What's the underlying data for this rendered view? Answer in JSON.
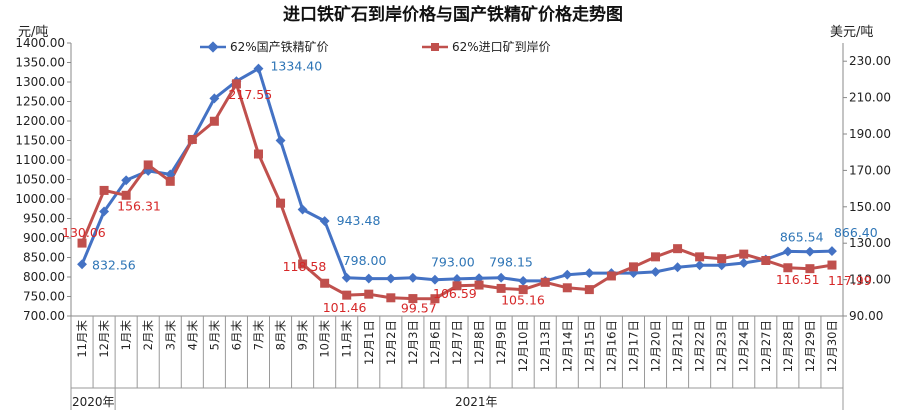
{
  "chart_data": {
    "type": "line",
    "title": "进口铁矿石到岸价格与国产铁精矿价格走势图",
    "ylabel_left": "元/吨",
    "ylabel_right": "美元/吨",
    "ylim_left": [
      700,
      1400
    ],
    "ylim_right": [
      90,
      240
    ],
    "yticks_left": [
      "700.00",
      "750.00",
      "800.00",
      "850.00",
      "900.00",
      "950.00",
      "1000.00",
      "1050.00",
      "1100.00",
      "1150.00",
      "1200.00",
      "1250.00",
      "1300.00",
      "1350.00",
      "1400.00"
    ],
    "yticks_right": [
      "90.00",
      "110.00",
      "130.00",
      "150.00",
      "170.00",
      "190.00",
      "210.00",
      "230.00"
    ],
    "categories": [
      "11月末",
      "12月末",
      "1月末",
      "2月末",
      "3月末",
      "4月末",
      "5月末",
      "6月末",
      "7月末",
      "8月末",
      "9月末",
      "10月末",
      "11月末",
      "12月1日",
      "12月2日",
      "12月3日",
      "12月6日",
      "12月7日",
      "12月8日",
      "12月9日",
      "12月10日",
      "12月13日",
      "12月14日",
      "12月15日",
      "12月16日",
      "12月17日",
      "12月20日",
      "12月21日",
      "12月22日",
      "12月23日",
      "12月24日",
      "12月27日",
      "12月28日",
      "12月29日",
      "12月30日"
    ],
    "year_labels": [
      "2020年",
      "2021年"
    ],
    "legend_position": "top-left",
    "grid": false,
    "series": [
      {
        "name": "62%国产铁精矿价",
        "axis": "left",
        "color": "#4472c4",
        "marker": "diamond",
        "values": [
          832.56,
          968,
          1048,
          1072,
          1063,
          1152,
          1258,
          1302,
          1334.4,
          1150,
          973,
          943.48,
          798.0,
          796,
          796,
          798,
          793.0,
          795,
          797,
          798.15,
          790,
          790,
          806,
          810,
          810,
          810,
          813,
          825,
          830,
          830,
          836,
          845,
          865.54,
          865,
          866.4
        ]
      },
      {
        "name": "62%进口矿到岸价",
        "axis": "right",
        "color": "#c0504d",
        "marker": "square",
        "values": [
          130.06,
          159,
          156.31,
          173,
          164,
          187,
          197,
          217.55,
          179,
          152,
          118.58,
          108,
          101.46,
          102,
          100,
          99.57,
          99.5,
          106.59,
          107,
          105.16,
          104.5,
          108.5,
          105.5,
          104.5,
          112,
          117,
          122.5,
          127,
          122.5,
          121.5,
          124,
          120.5,
          116.51,
          116,
          117.99
        ]
      }
    ],
    "data_labels": [
      {
        "series": 0,
        "index": 0,
        "text": "832.56"
      },
      {
        "series": 0,
        "index": 8,
        "text": "1334.40"
      },
      {
        "series": 0,
        "index": 11,
        "text": "943.48"
      },
      {
        "series": 0,
        "index": 12,
        "text": "798.00"
      },
      {
        "series": 0,
        "index": 16,
        "text": "793.00"
      },
      {
        "series": 0,
        "index": 19,
        "text": "798.15"
      },
      {
        "series": 0,
        "index": 32,
        "text": "865.54"
      },
      {
        "series": 0,
        "index": 34,
        "text": "866.40"
      },
      {
        "series": 1,
        "index": 0,
        "text": "130.06"
      },
      {
        "series": 1,
        "index": 2,
        "text": "156.31"
      },
      {
        "series": 1,
        "index": 7,
        "text": "217.55"
      },
      {
        "series": 1,
        "index": 10,
        "text": "118.58"
      },
      {
        "series": 1,
        "index": 12,
        "text": "101.46"
      },
      {
        "series": 1,
        "index": 15,
        "text": "99.57"
      },
      {
        "series": 1,
        "index": 17,
        "text": "106.59"
      },
      {
        "series": 1,
        "index": 19,
        "text": "105.16"
      },
      {
        "series": 1,
        "index": 32,
        "text": "116.51"
      },
      {
        "series": 1,
        "index": 34,
        "text": "117.99"
      }
    ]
  }
}
